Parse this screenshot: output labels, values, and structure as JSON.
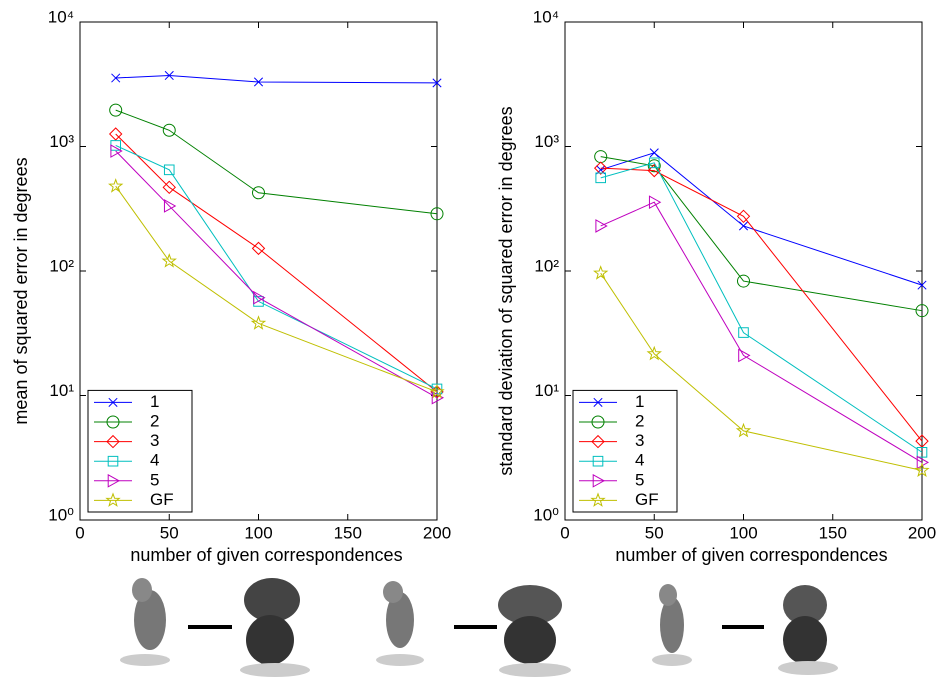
{
  "chart_data": [
    {
      "type": "line",
      "ylabel": "mean of squared error in degrees",
      "xlabel": "number of given correspondences",
      "x": [
        20,
        50,
        100,
        200
      ],
      "xlim": [
        0,
        200
      ],
      "xticks": [
        0,
        50,
        100,
        150,
        200
      ],
      "ylim": [
        1,
        10000
      ],
      "yscale": "log",
      "yticks": [
        {
          "value": 1,
          "label": "10⁰"
        },
        {
          "value": 10,
          "label": "10¹"
        },
        {
          "value": 100,
          "label": "10²"
        },
        {
          "value": 1000,
          "label": "10³"
        },
        {
          "value": 10000,
          "label": "10⁴"
        }
      ],
      "legend": "lower left",
      "series": [
        {
          "name": "1",
          "color": "#0000ff",
          "marker": "x",
          "values": [
            3550,
            3720,
            3300,
            3240
          ]
        },
        {
          "name": "2",
          "color": "#008000",
          "marker": "circle",
          "values": [
            1960,
            1350,
            425,
            288
          ]
        },
        {
          "name": "3",
          "color": "#ff0000",
          "marker": "diamond",
          "values": [
            1260,
            470,
            152,
            10.7
          ]
        },
        {
          "name": "4",
          "color": "#00bfbf",
          "marker": "square",
          "values": [
            1020,
            650,
            57,
            11.3
          ]
        },
        {
          "name": "5",
          "color": "#bf00bf",
          "marker": "triangle-right",
          "values": [
            920,
            333,
            61,
            9.6
          ]
        },
        {
          "name": "GF",
          "color": "#bfbf00",
          "marker": "star",
          "values": [
            480,
            120,
            38,
            10.7
          ]
        }
      ]
    },
    {
      "type": "line",
      "ylabel": "standard deviation of squared error in degrees",
      "xlabel": "number of given correspondences",
      "x": [
        20,
        50,
        100,
        200
      ],
      "xlim": [
        0,
        200
      ],
      "xticks": [
        0,
        50,
        100,
        150,
        200
      ],
      "ylim": [
        1,
        10000
      ],
      "yscale": "log",
      "yticks": [
        {
          "value": 1,
          "label": "10⁰"
        },
        {
          "value": 10,
          "label": "10¹"
        },
        {
          "value": 100,
          "label": "10²"
        },
        {
          "value": 1000,
          "label": "10³"
        },
        {
          "value": 10000,
          "label": "10⁴"
        }
      ],
      "legend": "lower left",
      "series": [
        {
          "name": "1",
          "color": "#0000ff",
          "marker": "x",
          "values": [
            650,
            890,
            230,
            77
          ]
        },
        {
          "name": "2",
          "color": "#008000",
          "marker": "circle",
          "values": [
            830,
            700,
            83,
            48
          ]
        },
        {
          "name": "3",
          "color": "#ff0000",
          "marker": "diamond",
          "values": [
            670,
            640,
            275,
            4.3
          ]
        },
        {
          "name": "4",
          "color": "#00bfbf",
          "marker": "square",
          "values": [
            560,
            740,
            32,
            3.5
          ]
        },
        {
          "name": "5",
          "color": "#bf00bf",
          "marker": "triangle-right",
          "values": [
            230,
            357,
            21,
            2.9
          ]
        },
        {
          "name": "GF",
          "color": "#bfbf00",
          "marker": "star",
          "values": [
            96,
            21.6,
            5.2,
            2.5
          ]
        }
      ]
    }
  ]
}
